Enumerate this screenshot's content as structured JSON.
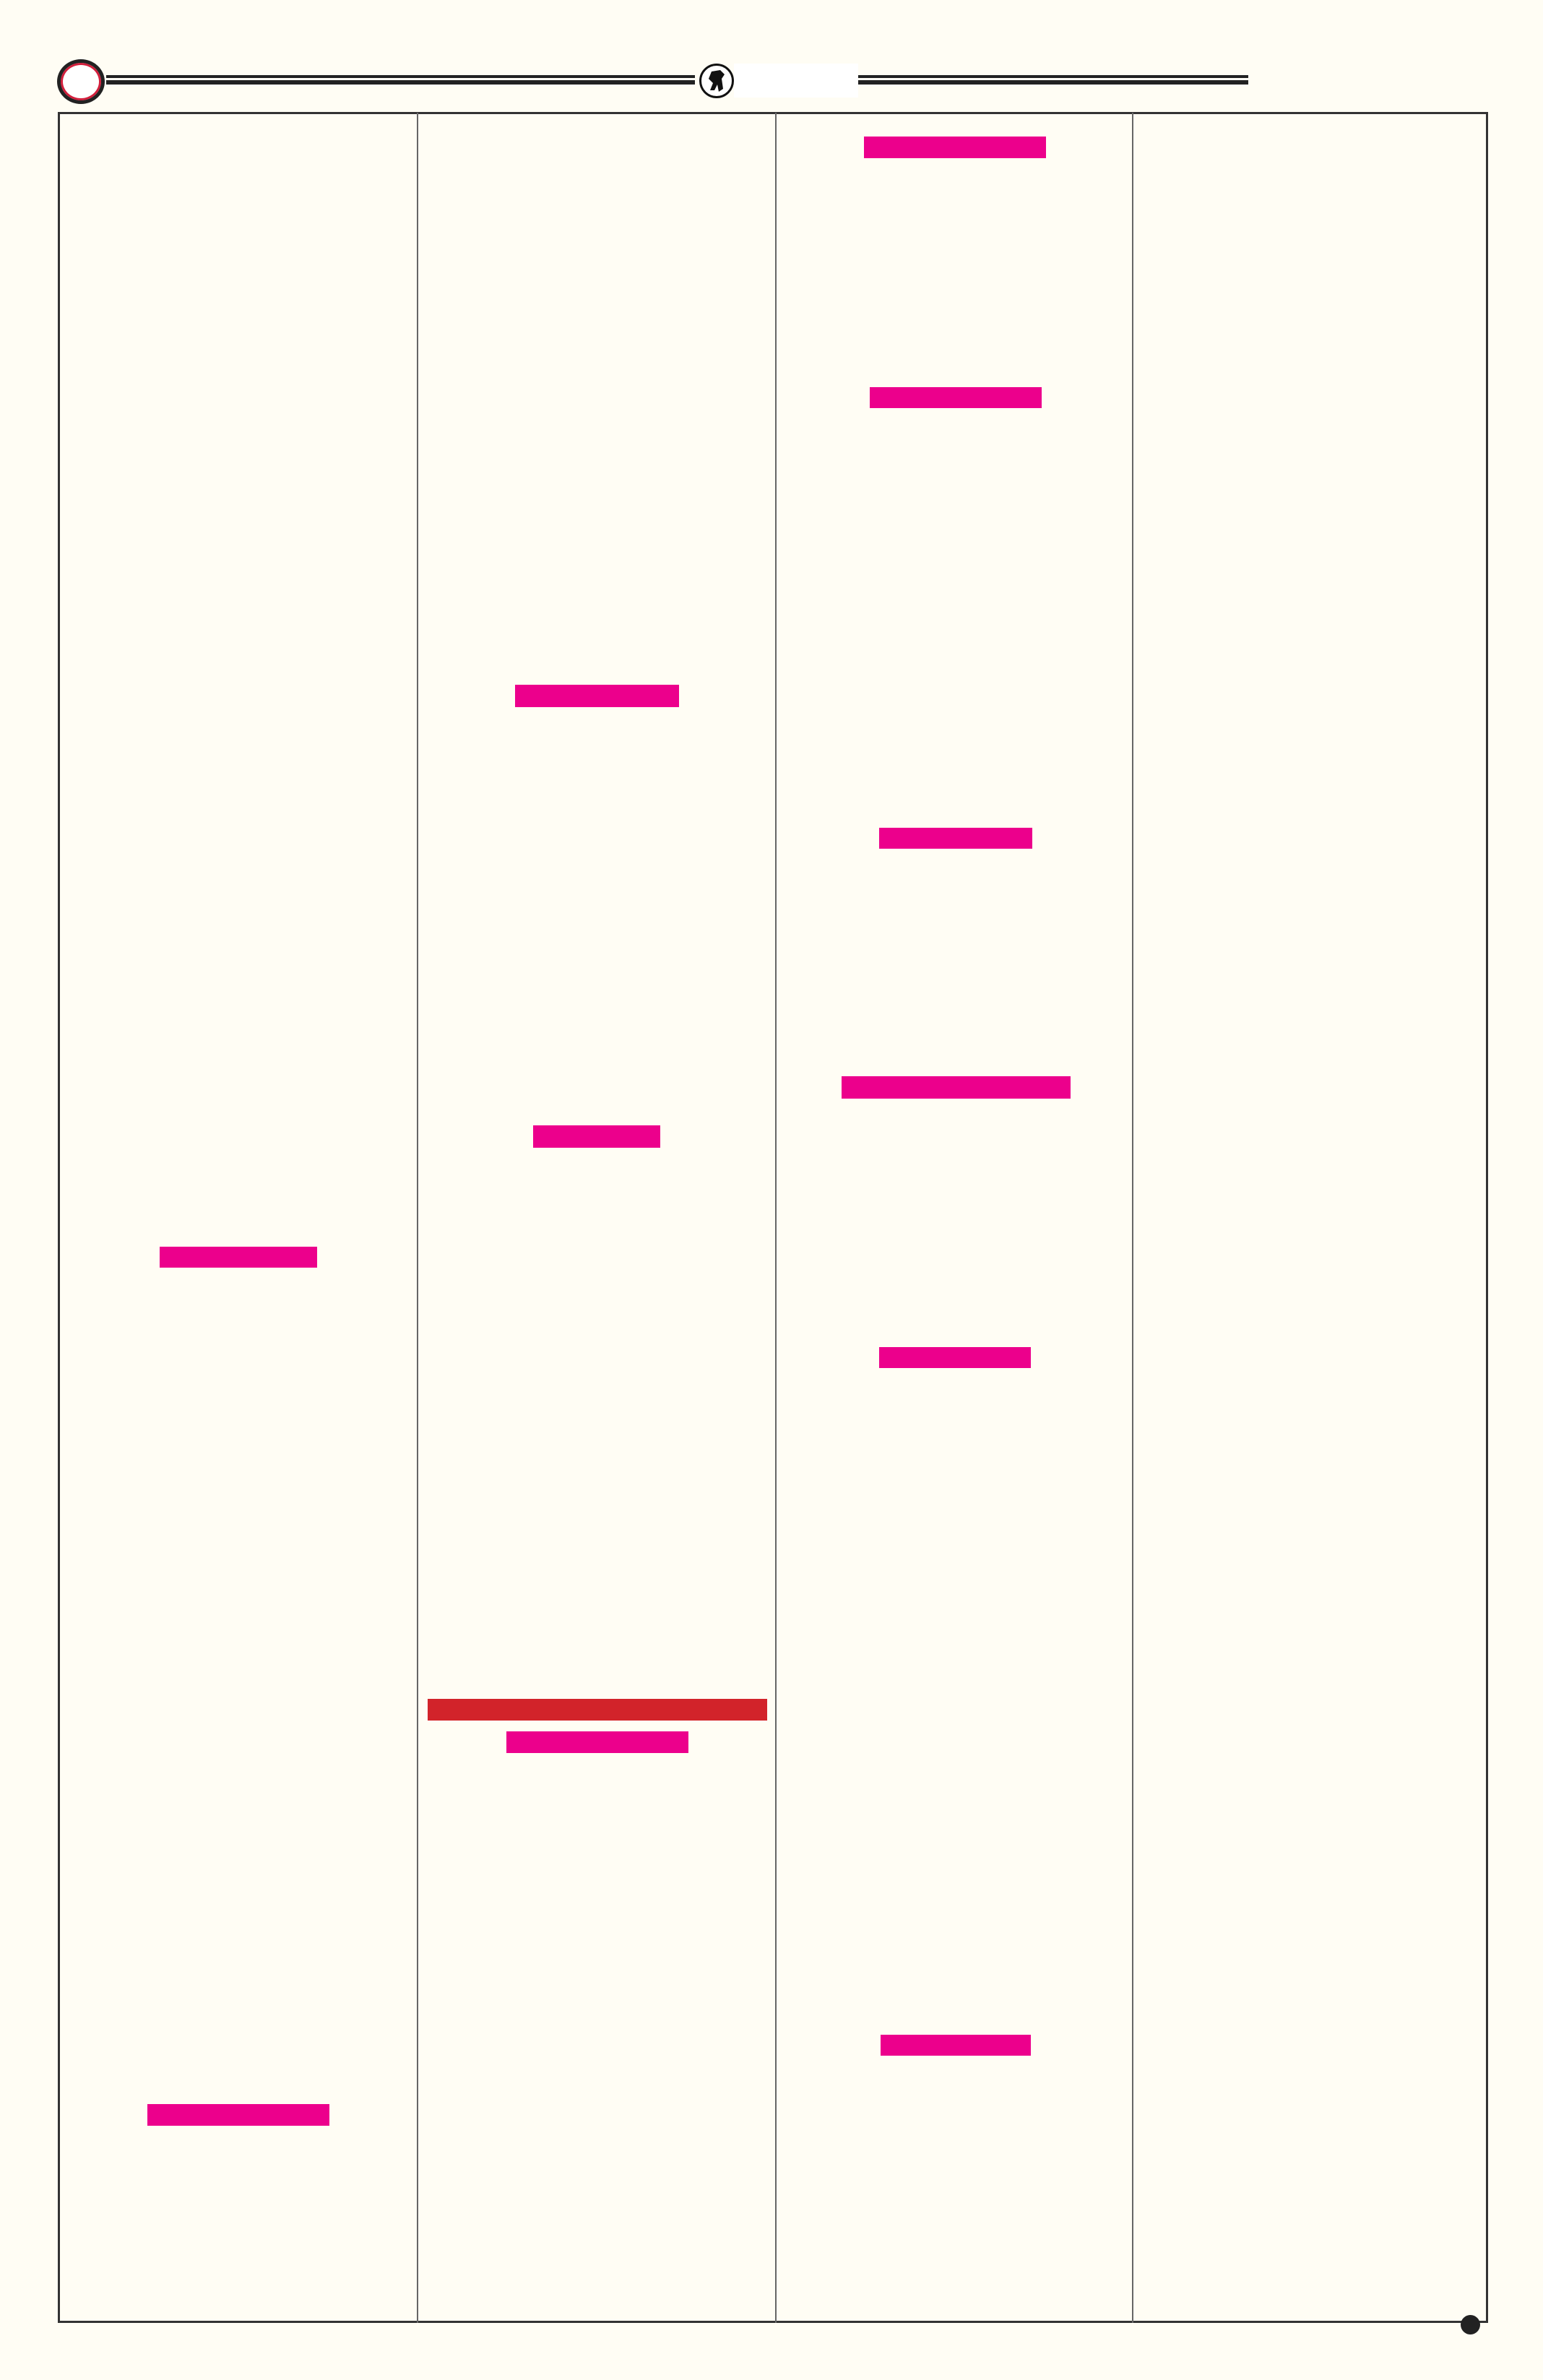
{
  "colors": {
    "background": "#fffdf4",
    "frame": "#333333",
    "redaction_magenta": "#ec008c",
    "redaction_red": "#d2232a",
    "header_ring_accent": "#d21f3c"
  },
  "header": {
    "logo_icon": "horse-rider-emblem-icon",
    "ring_icon": "ring-icon"
  },
  "columns": 4
}
